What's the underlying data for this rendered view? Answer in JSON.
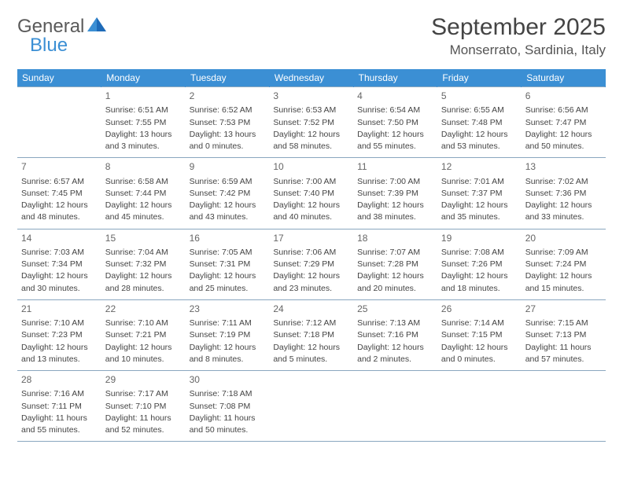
{
  "logo": {
    "word1": "General",
    "word2": "Blue"
  },
  "title": "September 2025",
  "location": "Monserrato, Sardinia, Italy",
  "weekdays": [
    "Sunday",
    "Monday",
    "Tuesday",
    "Wednesday",
    "Thursday",
    "Friday",
    "Saturday"
  ],
  "colors": {
    "header_bg": "#3b8fd4",
    "header_text": "#ffffff",
    "rule": "#8aa7bf",
    "text": "#444444"
  },
  "rows": [
    [
      null,
      {
        "day": "1",
        "sunrise": "Sunrise: 6:51 AM",
        "sunset": "Sunset: 7:55 PM",
        "daylight": "Daylight: 13 hours and 3 minutes."
      },
      {
        "day": "2",
        "sunrise": "Sunrise: 6:52 AM",
        "sunset": "Sunset: 7:53 PM",
        "daylight": "Daylight: 13 hours and 0 minutes."
      },
      {
        "day": "3",
        "sunrise": "Sunrise: 6:53 AM",
        "sunset": "Sunset: 7:52 PM",
        "daylight": "Daylight: 12 hours and 58 minutes."
      },
      {
        "day": "4",
        "sunrise": "Sunrise: 6:54 AM",
        "sunset": "Sunset: 7:50 PM",
        "daylight": "Daylight: 12 hours and 55 minutes."
      },
      {
        "day": "5",
        "sunrise": "Sunrise: 6:55 AM",
        "sunset": "Sunset: 7:48 PM",
        "daylight": "Daylight: 12 hours and 53 minutes."
      },
      {
        "day": "6",
        "sunrise": "Sunrise: 6:56 AM",
        "sunset": "Sunset: 7:47 PM",
        "daylight": "Daylight: 12 hours and 50 minutes."
      }
    ],
    [
      {
        "day": "7",
        "sunrise": "Sunrise: 6:57 AM",
        "sunset": "Sunset: 7:45 PM",
        "daylight": "Daylight: 12 hours and 48 minutes."
      },
      {
        "day": "8",
        "sunrise": "Sunrise: 6:58 AM",
        "sunset": "Sunset: 7:44 PM",
        "daylight": "Daylight: 12 hours and 45 minutes."
      },
      {
        "day": "9",
        "sunrise": "Sunrise: 6:59 AM",
        "sunset": "Sunset: 7:42 PM",
        "daylight": "Daylight: 12 hours and 43 minutes."
      },
      {
        "day": "10",
        "sunrise": "Sunrise: 7:00 AM",
        "sunset": "Sunset: 7:40 PM",
        "daylight": "Daylight: 12 hours and 40 minutes."
      },
      {
        "day": "11",
        "sunrise": "Sunrise: 7:00 AM",
        "sunset": "Sunset: 7:39 PM",
        "daylight": "Daylight: 12 hours and 38 minutes."
      },
      {
        "day": "12",
        "sunrise": "Sunrise: 7:01 AM",
        "sunset": "Sunset: 7:37 PM",
        "daylight": "Daylight: 12 hours and 35 minutes."
      },
      {
        "day": "13",
        "sunrise": "Sunrise: 7:02 AM",
        "sunset": "Sunset: 7:36 PM",
        "daylight": "Daylight: 12 hours and 33 minutes."
      }
    ],
    [
      {
        "day": "14",
        "sunrise": "Sunrise: 7:03 AM",
        "sunset": "Sunset: 7:34 PM",
        "daylight": "Daylight: 12 hours and 30 minutes."
      },
      {
        "day": "15",
        "sunrise": "Sunrise: 7:04 AM",
        "sunset": "Sunset: 7:32 PM",
        "daylight": "Daylight: 12 hours and 28 minutes."
      },
      {
        "day": "16",
        "sunrise": "Sunrise: 7:05 AM",
        "sunset": "Sunset: 7:31 PM",
        "daylight": "Daylight: 12 hours and 25 minutes."
      },
      {
        "day": "17",
        "sunrise": "Sunrise: 7:06 AM",
        "sunset": "Sunset: 7:29 PM",
        "daylight": "Daylight: 12 hours and 23 minutes."
      },
      {
        "day": "18",
        "sunrise": "Sunrise: 7:07 AM",
        "sunset": "Sunset: 7:28 PM",
        "daylight": "Daylight: 12 hours and 20 minutes."
      },
      {
        "day": "19",
        "sunrise": "Sunrise: 7:08 AM",
        "sunset": "Sunset: 7:26 PM",
        "daylight": "Daylight: 12 hours and 18 minutes."
      },
      {
        "day": "20",
        "sunrise": "Sunrise: 7:09 AM",
        "sunset": "Sunset: 7:24 PM",
        "daylight": "Daylight: 12 hours and 15 minutes."
      }
    ],
    [
      {
        "day": "21",
        "sunrise": "Sunrise: 7:10 AM",
        "sunset": "Sunset: 7:23 PM",
        "daylight": "Daylight: 12 hours and 13 minutes."
      },
      {
        "day": "22",
        "sunrise": "Sunrise: 7:10 AM",
        "sunset": "Sunset: 7:21 PM",
        "daylight": "Daylight: 12 hours and 10 minutes."
      },
      {
        "day": "23",
        "sunrise": "Sunrise: 7:11 AM",
        "sunset": "Sunset: 7:19 PM",
        "daylight": "Daylight: 12 hours and 8 minutes."
      },
      {
        "day": "24",
        "sunrise": "Sunrise: 7:12 AM",
        "sunset": "Sunset: 7:18 PM",
        "daylight": "Daylight: 12 hours and 5 minutes."
      },
      {
        "day": "25",
        "sunrise": "Sunrise: 7:13 AM",
        "sunset": "Sunset: 7:16 PM",
        "daylight": "Daylight: 12 hours and 2 minutes."
      },
      {
        "day": "26",
        "sunrise": "Sunrise: 7:14 AM",
        "sunset": "Sunset: 7:15 PM",
        "daylight": "Daylight: 12 hours and 0 minutes."
      },
      {
        "day": "27",
        "sunrise": "Sunrise: 7:15 AM",
        "sunset": "Sunset: 7:13 PM",
        "daylight": "Daylight: 11 hours and 57 minutes."
      }
    ],
    [
      {
        "day": "28",
        "sunrise": "Sunrise: 7:16 AM",
        "sunset": "Sunset: 7:11 PM",
        "daylight": "Daylight: 11 hours and 55 minutes."
      },
      {
        "day": "29",
        "sunrise": "Sunrise: 7:17 AM",
        "sunset": "Sunset: 7:10 PM",
        "daylight": "Daylight: 11 hours and 52 minutes."
      },
      {
        "day": "30",
        "sunrise": "Sunrise: 7:18 AM",
        "sunset": "Sunset: 7:08 PM",
        "daylight": "Daylight: 11 hours and 50 minutes."
      },
      null,
      null,
      null,
      null
    ]
  ]
}
